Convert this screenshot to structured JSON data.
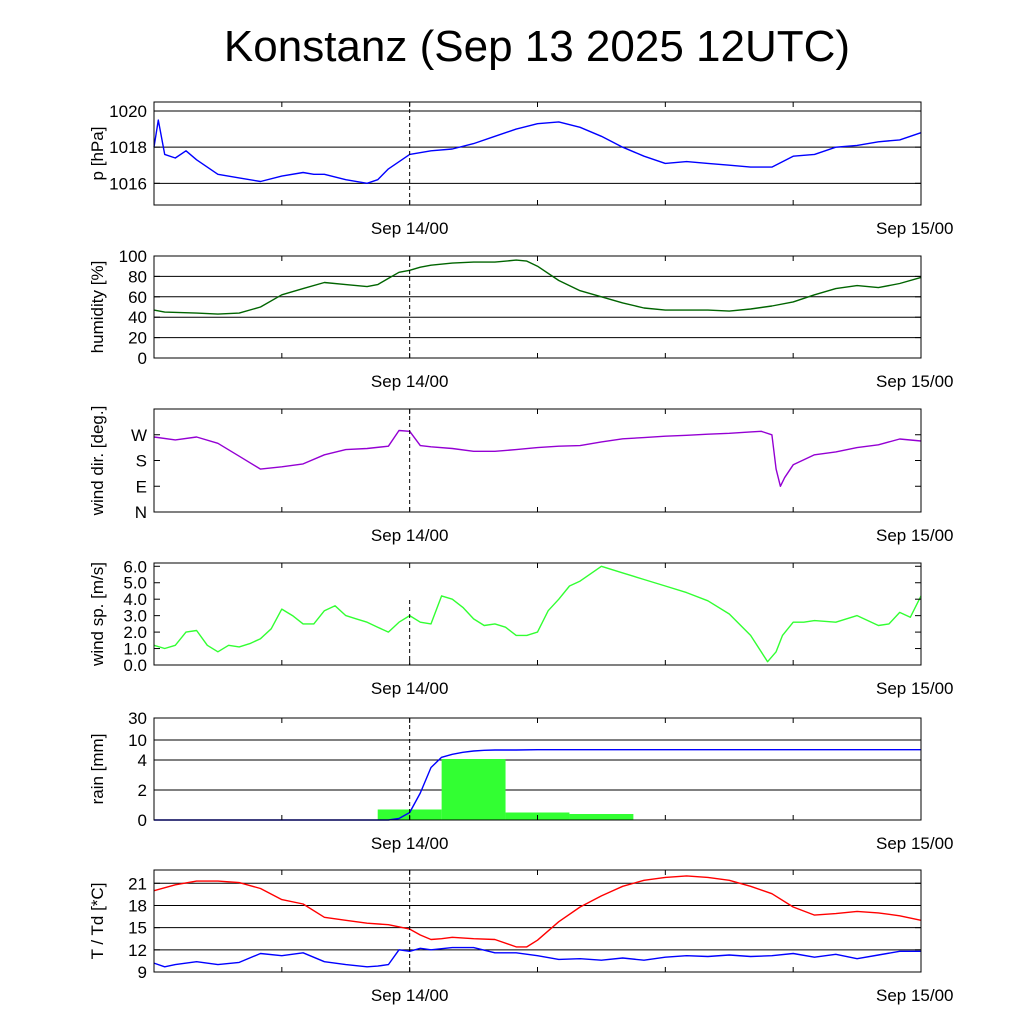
{
  "title": "Konstanz (Sep 13 2025 12UTC)",
  "colors": {
    "pressure": "#0000ff",
    "humidity": "#006400",
    "wind_dir": "#9400d3",
    "wind_speed": "#32ff32",
    "rain_bars": "#32ff32",
    "rain_total": "#0000ff",
    "temperature": "#ff0000",
    "dewpoint": "#0000ff",
    "grid": "#000000"
  },
  "chart_data": [
    {
      "type": "line",
      "ylabel": "p [hPa]",
      "x_ticks": [
        "Sep 14/00",
        "Sep 15/00"
      ],
      "x_range_hours": [
        -12,
        24
      ],
      "ylim": [
        1014.8,
        1020.5
      ],
      "y_ticks": [
        1016,
        1018,
        1020
      ],
      "y_tick_labels": [
        "1016",
        "1018",
        "1020"
      ],
      "grid": true,
      "series": [
        {
          "color_key": "pressure",
          "x": [
            -12,
            -11.8,
            -11.5,
            -11,
            -10.5,
            -10,
            -9,
            -8,
            -7,
            -6,
            -5,
            -4.5,
            -4,
            -3,
            -2,
            -1.5,
            -1,
            0,
            1,
            2,
            3,
            4,
            5,
            6,
            7,
            8,
            9,
            10,
            11,
            12,
            13,
            14,
            15,
            16,
            17,
            18,
            19,
            20,
            21,
            22,
            23,
            24
          ],
          "y": [
            1018,
            1019.5,
            1017.6,
            1017.4,
            1017.8,
            1017.3,
            1016.5,
            1016.3,
            1016.1,
            1016.4,
            1016.6,
            1016.5,
            1016.5,
            1016.2,
            1016.0,
            1016.2,
            1016.8,
            1017.6,
            1017.8,
            1017.9,
            1018.2,
            1018.6,
            1019.0,
            1019.3,
            1019.4,
            1019.1,
            1018.6,
            1018.0,
            1017.5,
            1017.1,
            1017.2,
            1017.1,
            1017.0,
            1016.9,
            1016.9,
            1017.5,
            1017.6,
            1018.0,
            1018.1,
            1018.3,
            1018.4,
            1018.8
          ]
        }
      ]
    },
    {
      "type": "line",
      "ylabel": "humidity [%]",
      "x_ticks": [
        "Sep 14/00",
        "Sep 15/00"
      ],
      "x_range_hours": [
        -12,
        24
      ],
      "ylim": [
        0,
        100
      ],
      "y_ticks": [
        0,
        20,
        40,
        60,
        80,
        100
      ],
      "y_tick_labels": [
        "0",
        "20",
        "40",
        "60",
        "80",
        "100"
      ],
      "grid": true,
      "series": [
        {
          "color_key": "humidity",
          "x": [
            -12,
            -11.5,
            -10,
            -9,
            -8,
            -7,
            -6,
            -5,
            -4,
            -3,
            -2,
            -1.5,
            -1,
            -0.5,
            0,
            0.5,
            1,
            2,
            3,
            4,
            5,
            5.5,
            6,
            7,
            8,
            9,
            10,
            11,
            12,
            13,
            14,
            15,
            16,
            17,
            18,
            19,
            20,
            21,
            22,
            23,
            24
          ],
          "y": [
            47,
            45,
            44,
            43,
            44,
            50,
            62,
            68,
            74,
            72,
            70,
            72,
            78,
            84,
            86,
            89,
            91,
            93,
            94,
            94,
            96,
            95,
            90,
            76,
            66,
            60,
            54,
            49,
            47,
            47,
            47,
            46,
            48,
            51,
            55,
            62,
            68,
            71,
            69,
            73,
            79
          ]
        }
      ]
    },
    {
      "type": "line",
      "ylabel": "wind dir. [deg.]",
      "x_ticks": [
        "Sep 14/00",
        "Sep 15/00"
      ],
      "x_range_hours": [
        -12,
        24
      ],
      "ylim": [
        0,
        360
      ],
      "y_ticks": [
        0,
        90,
        180,
        270
      ],
      "y_tick_labels": [
        "N",
        "E",
        "S",
        "W"
      ],
      "grid": false,
      "series": [
        {
          "color_key": "wind_dir",
          "x": [
            -12,
            -11,
            -10,
            -9,
            -8,
            -7,
            -6,
            -5,
            -4,
            -3,
            -2,
            -1,
            -0.5,
            0,
            0.5,
            1,
            2,
            3,
            4,
            5,
            6,
            7,
            8,
            9,
            10,
            11,
            12,
            13,
            14,
            15,
            16,
            16.5,
            17,
            17.2,
            17.4,
            17.6,
            18,
            19,
            20,
            21,
            22,
            23,
            24
          ],
          "y": [
            262,
            252,
            262,
            240,
            195,
            150,
            158,
            168,
            200,
            218,
            222,
            230,
            285,
            282,
            232,
            228,
            222,
            212,
            212,
            218,
            225,
            230,
            232,
            245,
            256,
            260,
            265,
            268,
            272,
            275,
            280,
            282,
            270,
            150,
            90,
            120,
            165,
            200,
            210,
            225,
            235,
            255,
            248
          ]
        }
      ]
    },
    {
      "type": "line",
      "ylabel": "wind sp. [m/s]",
      "x_ticks": [
        "Sep 14/00",
        "Sep 15/00"
      ],
      "x_range_hours": [
        -12,
        24
      ],
      "ylim": [
        0,
        6.2
      ],
      "y_ticks": [
        0,
        1,
        2,
        3,
        4,
        5,
        6
      ],
      "y_tick_labels": [
        "0.0",
        "1.0",
        "2.0",
        "3.0",
        "4.0",
        "5.0",
        "6.0"
      ],
      "grid": false,
      "series": [
        {
          "color_key": "wind_speed",
          "x": [
            -12,
            -11.5,
            -11,
            -10.5,
            -10,
            -9.5,
            -9,
            -8.5,
            -8,
            -7.5,
            -7,
            -6.5,
            -6,
            -5.5,
            -5,
            -4.5,
            -4,
            -3.5,
            -3,
            -2.5,
            -2,
            -1.5,
            -1,
            -0.5,
            0,
            0.5,
            1,
            1.5,
            2,
            2.5,
            3,
            3.5,
            4,
            4.5,
            5,
            5.5,
            6,
            6.5,
            7,
            7.5,
            8,
            9,
            10,
            11,
            12,
            13,
            14,
            15,
            16,
            16.8,
            17.2,
            17.5,
            18,
            18.5,
            19,
            20,
            21,
            22,
            22.5,
            23,
            23.5,
            24
          ],
          "y": [
            1.2,
            1.0,
            1.2,
            2.0,
            2.1,
            1.2,
            0.8,
            1.2,
            1.1,
            1.3,
            1.6,
            2.2,
            3.4,
            3.0,
            2.5,
            2.5,
            3.3,
            3.6,
            3.0,
            2.8,
            2.6,
            2.3,
            2.0,
            2.6,
            3.0,
            2.6,
            2.5,
            4.2,
            4.0,
            3.5,
            2.8,
            2.4,
            2.5,
            2.3,
            1.8,
            1.8,
            2.0,
            3.3,
            4.0,
            4.8,
            5.1,
            6.0,
            5.6,
            5.2,
            4.8,
            4.4,
            3.9,
            3.1,
            1.8,
            0.2,
            0.8,
            1.8,
            2.6,
            2.6,
            2.7,
            2.6,
            3.0,
            2.4,
            2.5,
            3.2,
            2.9,
            4.2
          ]
        }
      ]
    },
    {
      "type": "bar",
      "ylabel": "rain [mm]",
      "x_ticks": [
        "Sep 14/00",
        "Sep 15/00"
      ],
      "x_range_hours": [
        -12,
        24
      ],
      "y_scale": "nonlinear (bands 0-2, 2-4, 4-10, 10-30)",
      "y_ticks": [
        0,
        2,
        4,
        10,
        30
      ],
      "y_tick_labels": [
        "0",
        "2",
        "4",
        "10",
        "30"
      ],
      "grid": true,
      "bars": {
        "color_key": "rain_bars",
        "x_start_hours": [
          -1.5,
          1.5,
          4.5,
          7.5
        ],
        "x_end_hours": [
          1.5,
          4.5,
          7.5,
          10.5
        ],
        "values_mm": [
          0.7,
          4.3,
          0.5,
          0.4
        ]
      },
      "series": [
        {
          "color_key": "rain_total",
          "name": "accumulated",
          "x": [
            -12,
            -1,
            -0.5,
            0,
            0.5,
            1,
            1.5,
            2,
            2.5,
            3,
            3.5,
            4,
            5,
            6,
            8,
            10,
            12,
            16,
            20,
            24
          ],
          "y": [
            0,
            0,
            0.1,
            0.5,
            1.8,
            3.5,
            4.8,
            5.7,
            6.3,
            6.7,
            6.9,
            7.0,
            7.0,
            7.1,
            7.1,
            7.1,
            7.1,
            7.1,
            7.1,
            7.1
          ]
        }
      ]
    },
    {
      "type": "line",
      "ylabel": "T / Td [*C]",
      "x_ticks": [
        "Sep 14/00",
        "Sep 15/00"
      ],
      "x_range_hours": [
        -12,
        24
      ],
      "ylim": [
        9,
        22.8
      ],
      "y_ticks": [
        9,
        12,
        15,
        18,
        21
      ],
      "y_tick_labels": [
        "9",
        "12",
        "15",
        "18",
        "21"
      ],
      "grid": true,
      "series": [
        {
          "color_key": "temperature",
          "x": [
            -12,
            -11,
            -10,
            -9,
            -8,
            -7,
            -6,
            -5,
            -4,
            -3,
            -2,
            -1,
            0,
            0.5,
            1,
            1.5,
            2,
            3,
            4,
            5,
            5.5,
            6,
            7,
            8,
            9,
            10,
            11,
            12,
            13,
            14,
            15,
            16,
            17,
            18,
            19,
            20,
            21,
            22,
            23,
            24
          ],
          "y": [
            20.0,
            20.8,
            21.3,
            21.3,
            21.1,
            20.3,
            18.8,
            18.2,
            16.4,
            16.0,
            15.6,
            15.4,
            14.8,
            14.0,
            13.4,
            13.5,
            13.7,
            13.5,
            13.4,
            12.4,
            12.4,
            13.3,
            15.8,
            17.8,
            19.3,
            20.6,
            21.4,
            21.8,
            22.0,
            21.8,
            21.4,
            20.6,
            19.6,
            17.8,
            16.7,
            16.9,
            17.2,
            17.0,
            16.6,
            16.0
          ]
        },
        {
          "color_key": "dewpoint",
          "x": [
            -12,
            -11.5,
            -11,
            -10,
            -9,
            -8,
            -7,
            -6,
            -5,
            -4,
            -3,
            -2,
            -1.5,
            -1,
            -0.5,
            0,
            0.5,
            1,
            2,
            3,
            4,
            5,
            6,
            7,
            8,
            9,
            10,
            11,
            12,
            13,
            14,
            15,
            16,
            17,
            18,
            19,
            20,
            21,
            22,
            23,
            24
          ],
          "y": [
            10.2,
            9.7,
            10.0,
            10.4,
            10.0,
            10.3,
            11.5,
            11.2,
            11.6,
            10.4,
            10.0,
            9.7,
            9.8,
            10.0,
            12.0,
            11.8,
            12.2,
            12.0,
            12.3,
            12.3,
            11.6,
            11.6,
            11.2,
            10.7,
            10.8,
            10.6,
            10.9,
            10.6,
            11.0,
            11.2,
            11.1,
            11.3,
            11.1,
            11.2,
            11.5,
            11.0,
            11.4,
            10.8,
            11.3,
            11.8,
            11.8
          ]
        }
      ]
    }
  ]
}
